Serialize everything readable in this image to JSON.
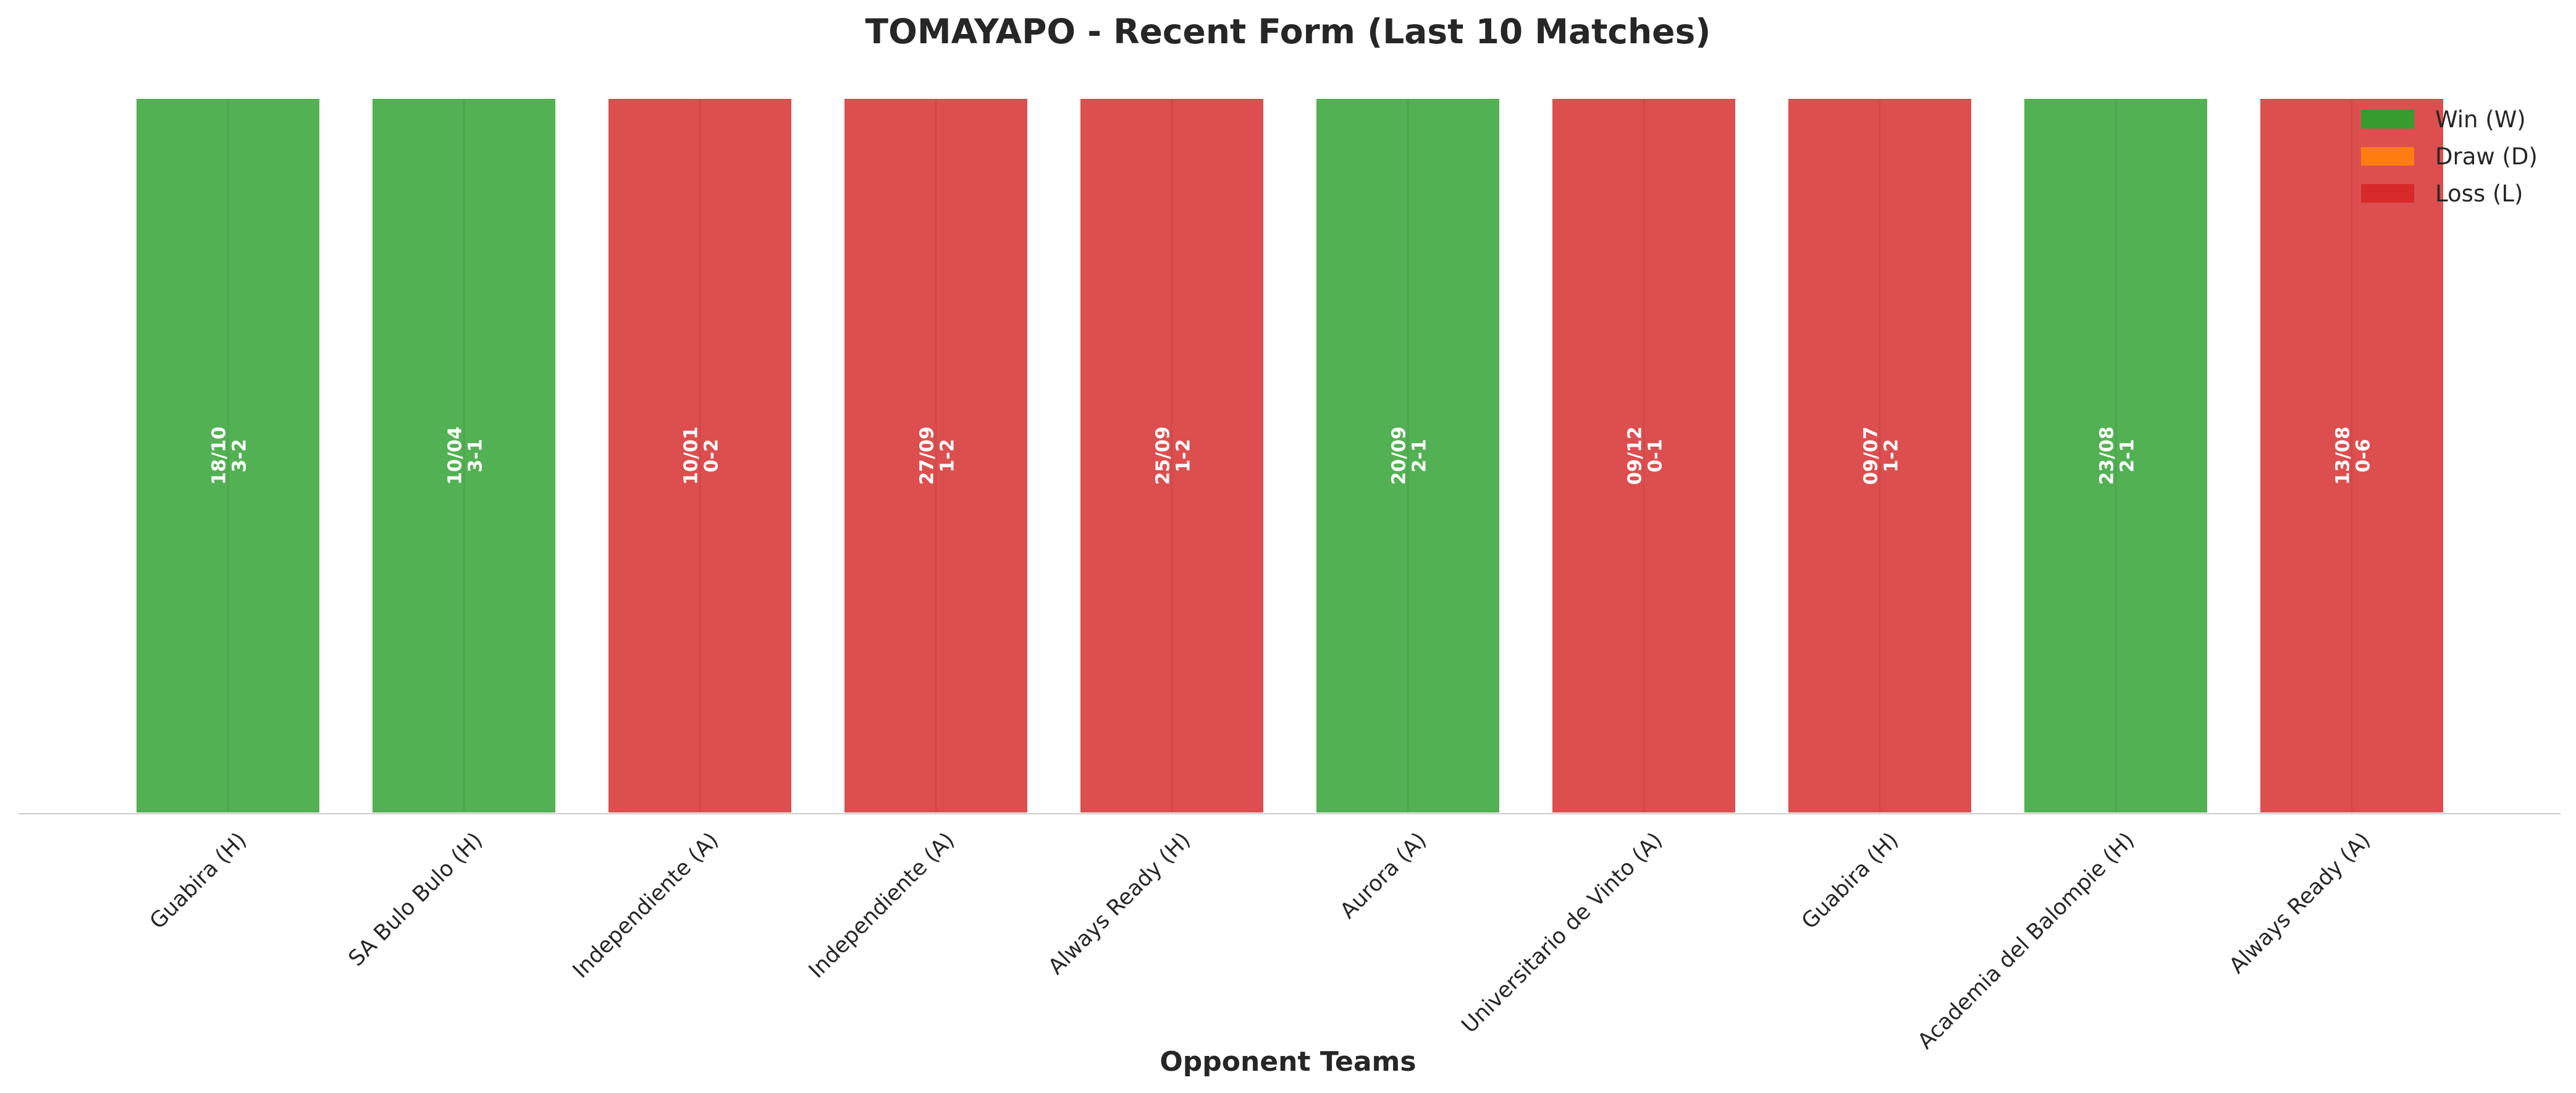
{
  "chart_data": {
    "type": "bar",
    "title": "TOMAYAPO - Recent Form (Last 10 Matches)",
    "xlabel": "Opponent Teams",
    "ylabel": "",
    "ylim": [
      0,
      1
    ],
    "grid": false,
    "legend_position": "top-right",
    "categories": [
      "Guabira (H)",
      "SA Bulo Bulo (H)",
      "Independiente (A)",
      "Independiente (A)",
      "Always Ready (H)",
      "Aurora (A)",
      "Universitario de Vinto (A)",
      "Guabira (H)",
      "Academia del Balompie (H)",
      "Always Ready (A)"
    ],
    "values": [
      1,
      1,
      1,
      1,
      1,
      1,
      1,
      1,
      1,
      1
    ],
    "results": [
      "W",
      "W",
      "L",
      "L",
      "L",
      "W",
      "L",
      "L",
      "W",
      "L"
    ],
    "dates": [
      "18/10",
      "10/04",
      "10/01",
      "27/09",
      "25/09",
      "20/09",
      "09/12",
      "09/07",
      "23/08",
      "13/08"
    ],
    "scores": [
      "3-2",
      "3-1",
      "0-2",
      "1-2",
      "1-2",
      "2-1",
      "0-1",
      "1-2",
      "2-1",
      "0-6"
    ],
    "legend": [
      {
        "key": "W",
        "label": "Win (W)",
        "color": "#2ca02c"
      },
      {
        "key": "D",
        "label": "Draw (D)",
        "color": "#ff7f0e"
      },
      {
        "key": "L",
        "label": "Loss (L)",
        "color": "#d62728"
      }
    ]
  }
}
